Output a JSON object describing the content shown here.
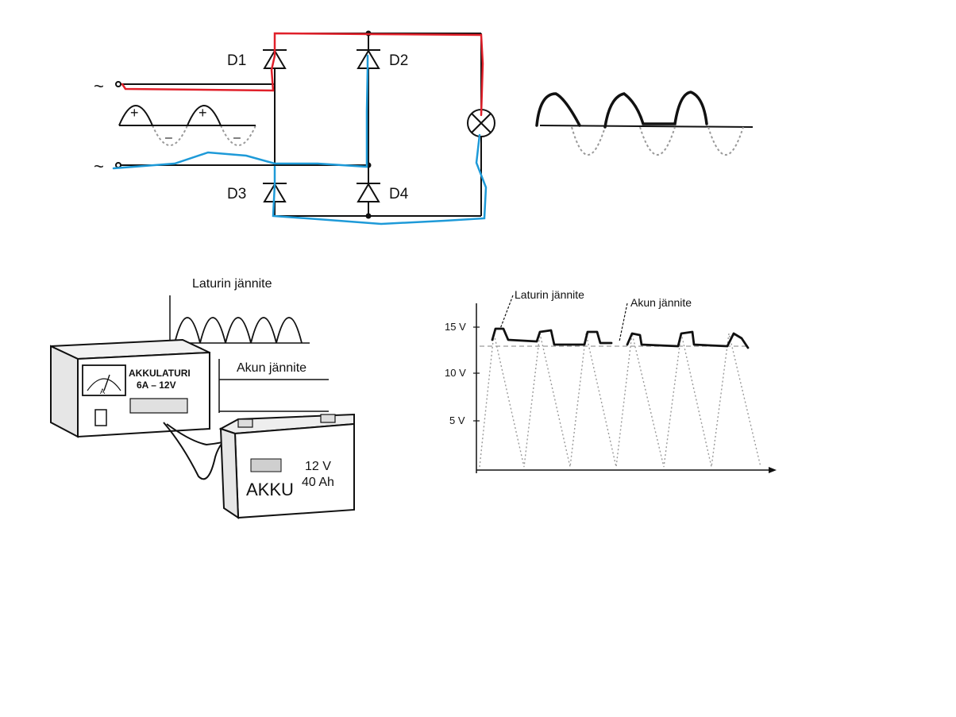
{
  "colors": {
    "ink": "#111111",
    "red_path": "#e0202a",
    "blue_path": "#1e9ad8",
    "dotted": "#9a9a9a",
    "panel": "#e6e6e6"
  },
  "bridge": {
    "ac_symbol_top": "~",
    "ac_symbol_bottom": "~",
    "plus_1": "+",
    "plus_2": "+",
    "minus_1": "–",
    "minus_2": "–",
    "diodes": [
      {
        "label": "D1"
      },
      {
        "label": "D2"
      },
      {
        "label": "D3"
      },
      {
        "label": "D4"
      }
    ]
  },
  "charger": {
    "waveform_label": "Laturin jännite",
    "battery_voltage_label": "Akun jännite",
    "device_label_line1": "AKKULATURI",
    "device_label_line2": "6A – 12V",
    "meter_letter": "A",
    "battery_name": "AKKU",
    "battery_voltage": "12 V",
    "battery_capacity": "40 Ah"
  },
  "graph": {
    "label_charger": "Laturin jännite",
    "label_battery": "Akun jännite",
    "y_ticks": [
      "15 V",
      "10 V",
      "5 V"
    ]
  }
}
